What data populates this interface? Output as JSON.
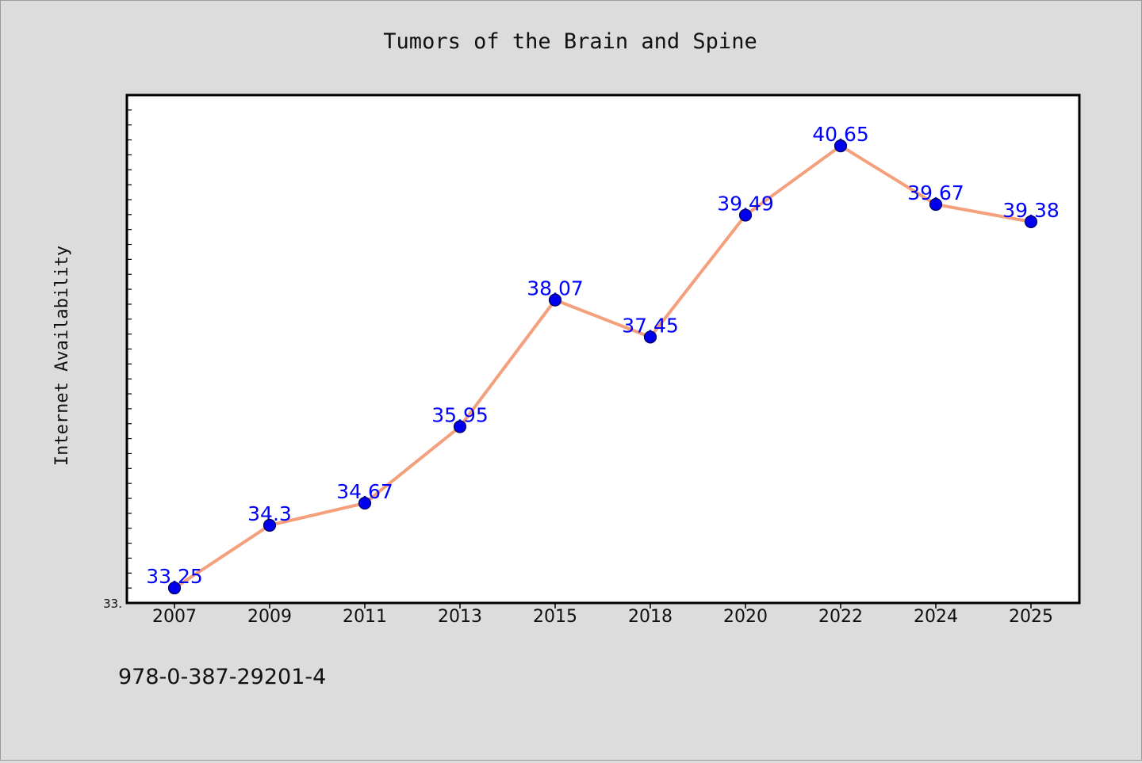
{
  "chart_data": {
    "type": "line",
    "title": "Tumors of the Brain and Spine",
    "xlabel": "",
    "ylabel": "Internet Availability",
    "categories": [
      "2007",
      "2009",
      "2011",
      "2013",
      "2015",
      "2018",
      "2020",
      "2022",
      "2024",
      "2025"
    ],
    "series": [
      {
        "values": [
          33.25,
          34.3,
          34.67,
          35.95,
          38.07,
          37.45,
          39.49,
          40.65,
          39.67,
          39.38
        ]
      }
    ],
    "data_labels": [
      "33.25",
      "34.3",
      "34.67",
      "35.95",
      "38.07",
      "37.45",
      "39.49",
      "40.65",
      "39.67",
      "39.38"
    ],
    "y_min_label": "33.",
    "ylim": [
      33.0,
      41.5
    ],
    "grid": false,
    "legend": "none",
    "colors": {
      "line": "#f4a07c",
      "marker": "#0000ee",
      "marker_edge": "#00005a",
      "data_label": "#0000ff",
      "plot_background": "#ffffff",
      "figure_background": "#dcdcdc"
    }
  },
  "footer": {
    "isbn": "978-0-387-29201-4"
  }
}
